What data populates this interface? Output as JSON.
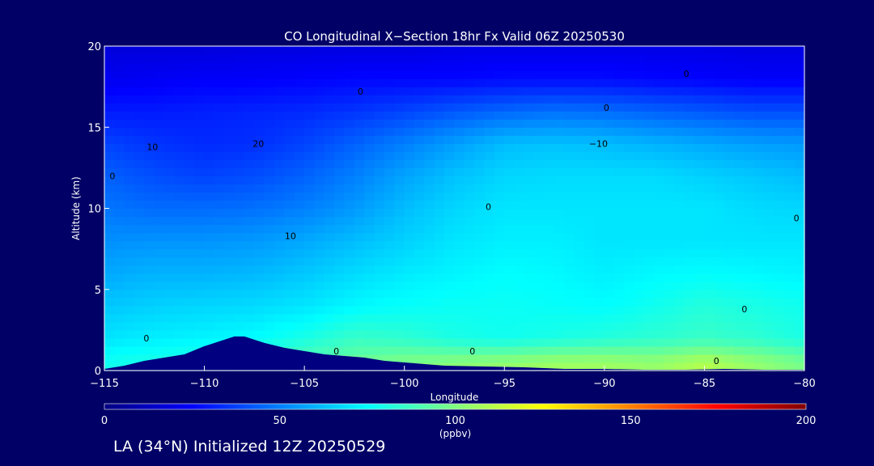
{
  "chart_data": {
    "type": "heatmap",
    "title": "CO Longitudinal X−Section 18hr  Fx Valid 06Z 20250530",
    "xlabel": "Longitude",
    "ylabel": "Altitude (km)",
    "xlim": [
      -115,
      -80
    ],
    "ylim": [
      0,
      20
    ],
    "x_ticks": [
      -115,
      -110,
      -105,
      -100,
      -95,
      -90,
      -85,
      -80
    ],
    "y_ticks": [
      0,
      5,
      10,
      15,
      20
    ],
    "grid": false,
    "colorbar": {
      "min": 0,
      "max": 200,
      "ticks": [
        0,
        50,
        100,
        150,
        200
      ],
      "unit": "(ppbv)",
      "colors": [
        "#000080",
        "#0000ff",
        "#0080ff",
        "#00ffff",
        "#80ff80",
        "#ffff00",
        "#ff8000",
        "#ff0000",
        "#800000"
      ]
    },
    "concentration_field": {
      "longitudes": [
        -115,
        -112.5,
        -110,
        -107.5,
        -105,
        -102.5,
        -100,
        -97.5,
        -95,
        -92.5,
        -90,
        -87.5,
        -85,
        -82.5,
        -80
      ],
      "altitudes": [
        0.5,
        2,
        4,
        6,
        8,
        10,
        12,
        14,
        16,
        18,
        20
      ],
      "values": [
        [
          78,
          80,
          83,
          88,
          92,
          96,
          100,
          102,
          104,
          106,
          106,
          104,
          110,
          104,
          98
        ],
        [
          70,
          72,
          73,
          75,
          80,
          86,
          84,
          80,
          78,
          80,
          82,
          84,
          86,
          84,
          80
        ],
        [
          64,
          66,
          67,
          68,
          70,
          74,
          76,
          77,
          77,
          76,
          75,
          78,
          82,
          80,
          78
        ],
        [
          58,
          60,
          60,
          61,
          64,
          68,
          71,
          73,
          75,
          74,
          72,
          74,
          75,
          74,
          73
        ],
        [
          53,
          54,
          54,
          55,
          58,
          62,
          66,
          70,
          72,
          72,
          70,
          70,
          70,
          70,
          70
        ],
        [
          48,
          46,
          46,
          47,
          50,
          55,
          62,
          67,
          70,
          70,
          70,
          70,
          70,
          68,
          67
        ],
        [
          44,
          40,
          38,
          40,
          44,
          50,
          57,
          63,
          67,
          68,
          68,
          68,
          66,
          64,
          62
        ],
        [
          38,
          35,
          33,
          34,
          38,
          44,
          50,
          56,
          62,
          63,
          62,
          60,
          58,
          56,
          55
        ],
        [
          30,
          30,
          31,
          32,
          33,
          35,
          38,
          42,
          45,
          47,
          46,
          44,
          42,
          40,
          40
        ],
        [
          22,
          23,
          24,
          24,
          25,
          26,
          26,
          26,
          27,
          27,
          27,
          26,
          25,
          24,
          24
        ],
        [
          18,
          18,
          18,
          19,
          19,
          19,
          19,
          20,
          20,
          20,
          20,
          20,
          20,
          19,
          19
        ]
      ]
    },
    "terrain": {
      "longitudes": [
        -115,
        -114,
        -113,
        -112.5,
        -111,
        -110,
        -109,
        -108.5,
        -108,
        -107.5,
        -107,
        -106,
        -105,
        -104,
        -103,
        -102,
        -101,
        -100,
        -99,
        -98,
        -96,
        -94,
        -92,
        -90,
        -88,
        -86,
        -84,
        -82,
        -80
      ],
      "heights": [
        0.1,
        0.3,
        0.6,
        0.7,
        1.0,
        1.5,
        1.9,
        2.1,
        2.1,
        1.9,
        1.7,
        1.4,
        1.2,
        1.0,
        0.9,
        0.8,
        0.6,
        0.5,
        0.4,
        0.3,
        0.25,
        0.2,
        0.1,
        0.1,
        0.05,
        0.05,
        0.1,
        0.05,
        0.05
      ]
    },
    "contour_labels": [
      {
        "text": "0",
        "lon": -102.2,
        "alt": 17.2
      },
      {
        "text": "0",
        "lon": -89.9,
        "alt": 16.2
      },
      {
        "text": "0",
        "lon": -85.9,
        "alt": 18.3
      },
      {
        "text": "10",
        "lon": -112.6,
        "alt": 13.8
      },
      {
        "text": "20",
        "lon": -107.3,
        "alt": 14.0
      },
      {
        "text": "0",
        "lon": -114.6,
        "alt": 12.0
      },
      {
        "text": "−10",
        "lon": -90.3,
        "alt": 14.0
      },
      {
        "text": "0",
        "lon": -95.8,
        "alt": 10.1
      },
      {
        "text": "0",
        "lon": -80.4,
        "alt": 9.4
      },
      {
        "text": "10",
        "lon": -105.7,
        "alt": 8.3
      },
      {
        "text": "0",
        "lon": -112.9,
        "alt": 2.0
      },
      {
        "text": "0",
        "lon": -103.4,
        "alt": 1.2
      },
      {
        "text": "0",
        "lon": -96.6,
        "alt": 1.2
      },
      {
        "text": "0",
        "lon": -84.4,
        "alt": 0.6
      },
      {
        "text": "0",
        "lon": -83.0,
        "alt": 3.8
      }
    ]
  },
  "footer": {
    "caption": "LA (34°N) Initialized 12Z 20250529"
  }
}
